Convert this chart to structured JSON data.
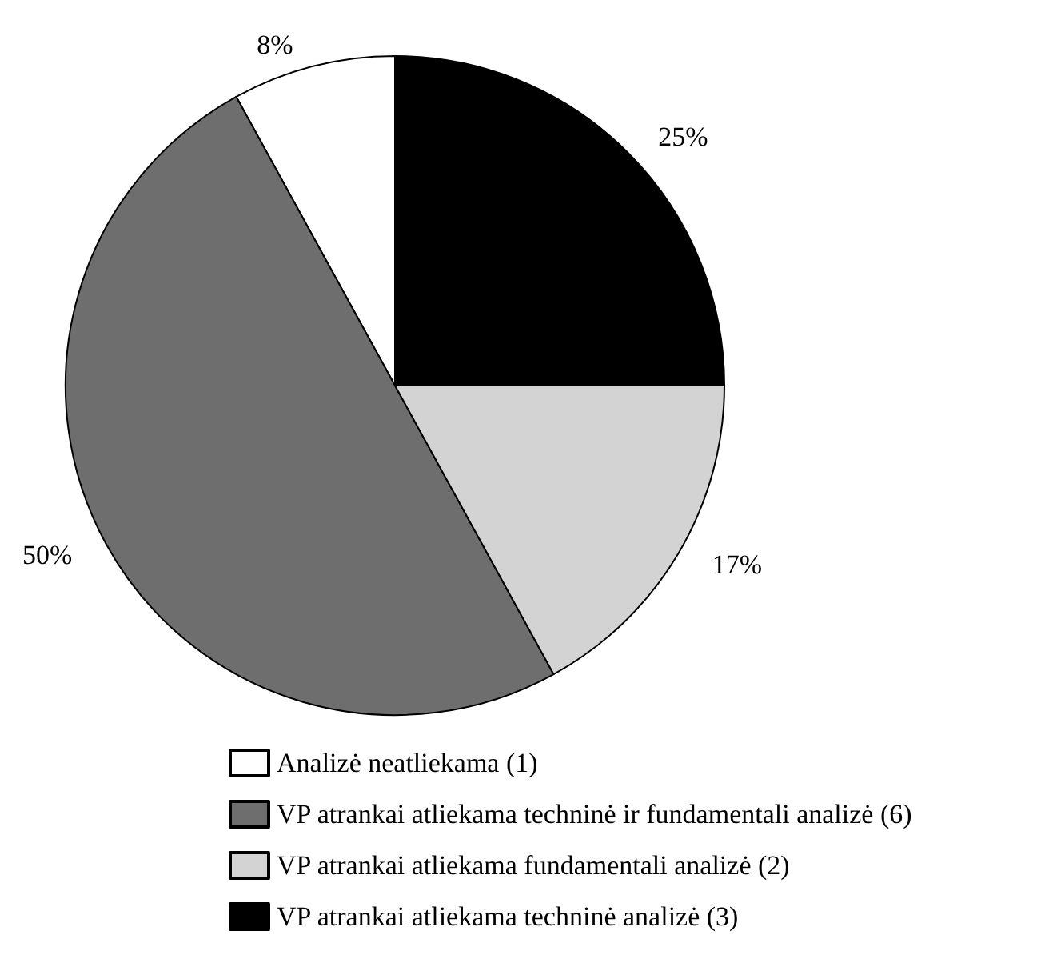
{
  "chart_data": {
    "type": "pie",
    "categories": [
      "Analizė neatliekama (1)",
      "VP atrankai atliekama techninė ir fundamentali analizė (6)",
      "VP atrankai atliekama fundamentali analizė (2)",
      "VP atrankai atliekama techninė analizė (3)"
    ],
    "values": [
      8,
      50,
      17,
      25
    ],
    "value_labels": [
      "8%",
      "50%",
      "17%",
      "25%"
    ],
    "colors": [
      "#ffffff",
      "#6e6e6e",
      "#d3d3d3",
      "#000000"
    ],
    "legend": "bottom"
  }
}
